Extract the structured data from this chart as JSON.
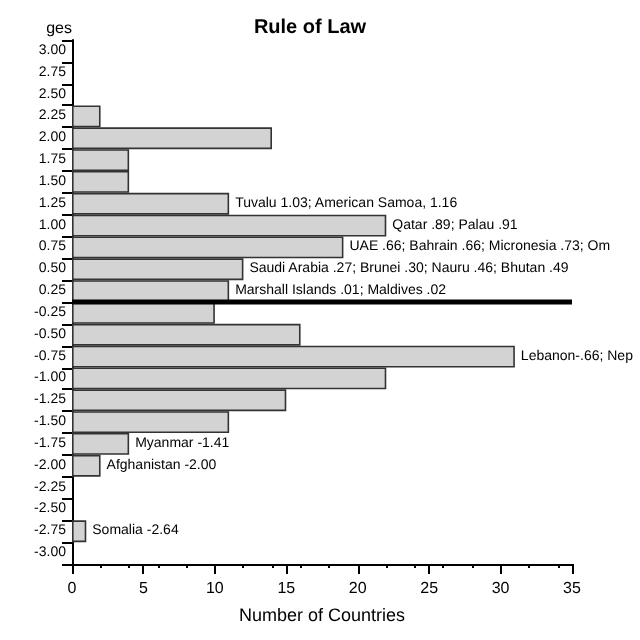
{
  "chart_data": {
    "type": "bar",
    "orientation": "horizontal",
    "title": "Rule of Law",
    "xlabel": "Number of Countries",
    "ylabel": "ges",
    "categories": [
      "3.00",
      "2.75",
      "2.50",
      "2.25",
      "2.00",
      "1.75",
      "1.50",
      "1.25",
      "1.00",
      "0.75",
      "0.50",
      "0.25",
      "-0.25",
      "-0.50",
      "-0.75",
      "-1.00",
      "-1.25",
      "-1.50",
      "-1.75",
      "-2.00",
      "-2.25",
      "-2.50",
      "-2.75",
      "-3.00"
    ],
    "values": [
      0,
      0,
      0,
      2,
      14,
      4,
      4,
      11,
      22,
      19,
      12,
      11,
      10,
      16,
      31,
      22,
      15,
      11,
      4,
      2,
      0,
      0,
      1,
      0
    ],
    "color": "#d3d3d3",
    "xlim": [
      0,
      35
    ],
    "xticks": [
      0,
      5,
      10,
      15,
      20,
      25,
      30,
      35
    ],
    "annotations": [
      {
        "text": "Tuvalu 1.03; American Samoa, 1.16",
        "x": 11,
        "y": "1.25"
      },
      {
        "text": "Qatar .89; Palau .91",
        "x": 22,
        "y": "1.00"
      },
      {
        "text": "UAE .66; Bahrain .66; Micronesia .73; Om",
        "x": 19,
        "y": "0.75"
      },
      {
        "text": "Saudi Arabia .27; Brunei .30; Nauru .46; Bhutan .49",
        "x": 12,
        "y": "0.50"
      },
      {
        "text": "Marshall Islands .01; Maldives .02",
        "x": 11,
        "y": "0.25"
      },
      {
        "text": "Lebanon-.66; Nep",
        "x": 31,
        "y": "-0.75"
      },
      {
        "text": "Myanmar -1.41",
        "x": 4,
        "y": "-1.75"
      },
      {
        "text": "Afghanistan -2.00",
        "x": 2,
        "y": "-2.00"
      },
      {
        "text": "Somalia -2.64",
        "x": 1,
        "y": "-2.75"
      }
    ]
  }
}
